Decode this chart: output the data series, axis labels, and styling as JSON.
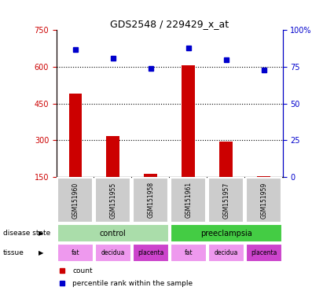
{
  "title": "GDS2548 / 229429_x_at",
  "samples": [
    "GSM151960",
    "GSM151955",
    "GSM151958",
    "GSM151961",
    "GSM151957",
    "GSM151959"
  ],
  "bar_values": [
    490,
    315,
    162,
    605,
    295,
    152
  ],
  "scatter_values": [
    87,
    81,
    74,
    88,
    80,
    73
  ],
  "bar_color": "#cc0000",
  "scatter_color": "#0000cc",
  "ylim_left": [
    150,
    750
  ],
  "ylim_right": [
    0,
    100
  ],
  "yticks_left": [
    150,
    300,
    450,
    600,
    750
  ],
  "yticks_right": [
    0,
    25,
    50,
    75,
    100
  ],
  "grid_values": [
    300,
    450,
    600
  ],
  "disease_state": [
    {
      "label": "control",
      "span": [
        0,
        3
      ],
      "color": "#aaddaa"
    },
    {
      "label": "preeclampsia",
      "span": [
        3,
        6
      ],
      "color": "#44cc44"
    }
  ],
  "tissue": [
    {
      "label": "fat",
      "span": [
        0,
        1
      ],
      "color": "#ee99ee"
    },
    {
      "label": "decidua",
      "span": [
        1,
        2
      ],
      "color": "#ee99ee"
    },
    {
      "label": "placenta",
      "span": [
        2,
        3
      ],
      "color": "#cc44cc"
    },
    {
      "label": "fat",
      "span": [
        3,
        4
      ],
      "color": "#ee99ee"
    },
    {
      "label": "decidua",
      "span": [
        4,
        5
      ],
      "color": "#ee99ee"
    },
    {
      "label": "placenta",
      "span": [
        5,
        6
      ],
      "color": "#cc44cc"
    }
  ],
  "legend_count_color": "#cc0000",
  "legend_scatter_color": "#0000cc",
  "left_axis_color": "#cc0000",
  "right_axis_color": "#0000cc"
}
